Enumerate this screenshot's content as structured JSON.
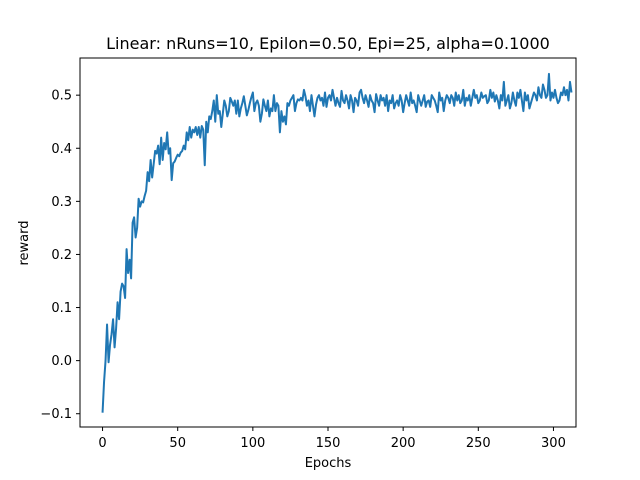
{
  "chart_data": {
    "type": "line",
    "title": "Linear: nRuns=10, Epilon=0.50, Epi=25, alpha=0.1000",
    "xlabel": "Epochs",
    "ylabel": "reward",
    "xlim": [
      -15,
      315
    ],
    "ylim": [
      -0.125,
      0.57
    ],
    "xticks": [
      0,
      50,
      100,
      150,
      200,
      250,
      300
    ],
    "yticks": [
      -0.1,
      0.0,
      0.1,
      0.2,
      0.3,
      0.4,
      0.5
    ],
    "xtick_labels": [
      "0",
      "50",
      "100",
      "150",
      "200",
      "250",
      "300"
    ],
    "ytick_labels": [
      "−0.1",
      "0.0",
      "0.1",
      "0.2",
      "0.3",
      "0.4",
      "0.5"
    ],
    "grid": false,
    "series": [
      {
        "color": "#1f77b4",
        "x_step": 1,
        "x_start": 0,
        "values": [
          -0.098,
          -0.04,
          0.0,
          0.068,
          -0.003,
          0.03,
          0.05,
          0.078,
          0.025,
          0.06,
          0.11,
          0.078,
          0.13,
          0.145,
          0.14,
          0.118,
          0.21,
          0.165,
          0.19,
          0.155,
          0.26,
          0.27,
          0.232,
          0.25,
          0.305,
          0.29,
          0.3,
          0.298,
          0.31,
          0.32,
          0.355,
          0.338,
          0.378,
          0.345,
          0.37,
          0.395,
          0.39,
          0.405,
          0.37,
          0.42,
          0.378,
          0.41,
          0.398,
          0.43,
          0.39,
          0.4,
          0.34,
          0.372,
          0.375,
          0.382,
          0.388,
          0.385,
          0.392,
          0.395,
          0.405,
          0.398,
          0.43,
          0.415,
          0.44,
          0.42,
          0.435,
          0.43,
          0.44,
          0.425,
          0.44,
          0.42,
          0.442,
          0.435,
          0.368,
          0.45,
          0.43,
          0.46,
          0.455,
          0.47,
          0.49,
          0.45,
          0.5,
          0.465,
          0.47,
          0.44,
          0.465,
          0.49,
          0.48,
          0.46,
          0.47,
          0.495,
          0.488,
          0.48,
          0.49,
          0.465,
          0.49,
          0.46,
          0.475,
          0.485,
          0.498,
          0.48,
          0.462,
          0.472,
          0.485,
          0.496,
          0.505,
          0.47,
          0.485,
          0.49,
          0.48,
          0.45,
          0.465,
          0.492,
          0.48,
          0.47,
          0.49,
          0.46,
          0.475,
          0.47,
          0.5,
          0.47,
          0.485,
          0.48,
          0.43,
          0.47,
          0.45,
          0.46,
          0.445,
          0.485,
          0.48,
          0.49,
          0.495,
          0.5,
          0.47,
          0.485,
          0.492,
          0.49,
          0.495,
          0.49,
          0.51,
          0.498,
          0.48,
          0.49,
          0.47,
          0.5,
          0.48,
          0.46,
          0.482,
          0.495,
          0.5,
          0.49,
          0.495,
          0.48,
          0.505,
          0.478,
          0.495,
          0.5,
          0.49,
          0.51,
          0.495,
          0.48,
          0.495,
          0.485,
          0.478,
          0.508,
          0.49,
          0.485,
          0.5,
          0.49,
          0.475,
          0.5,
          0.49,
          0.468,
          0.495,
          0.49,
          0.48,
          0.505,
          0.51,
          0.495,
          0.485,
          0.5,
          0.49,
          0.478,
          0.5,
          0.49,
          0.485,
          0.468,
          0.502,
          0.49,
          0.48,
          0.5,
          0.49,
          0.495,
          0.48,
          0.5,
          0.47,
          0.49,
          0.485,
          0.5,
          0.475,
          0.485,
          0.49,
          0.48,
          0.5,
          0.49,
          0.468,
          0.485,
          0.5,
          0.49,
          0.48,
          0.505,
          0.485,
          0.49,
          0.48,
          0.468,
          0.5,
          0.49,
          0.48,
          0.49,
          0.5,
          0.478,
          0.488,
          0.49,
          0.478,
          0.5,
          0.495,
          0.49,
          0.48,
          0.468,
          0.505,
          0.49,
          0.495,
          0.47,
          0.49,
          0.5,
          0.495,
          0.485,
          0.5,
          0.495,
          0.48,
          0.505,
          0.49,
          0.5,
          0.485,
          0.49,
          0.51,
          0.48,
          0.495,
          0.49,
          0.5,
          0.48,
          0.495,
          0.51,
          0.495,
          0.5,
          0.485,
          0.49,
          0.505,
          0.495,
          0.498,
          0.5,
          0.485,
          0.49,
          0.51,
          0.495,
          0.505,
          0.488,
          0.5,
          0.49,
          0.475,
          0.5,
          0.49,
          0.525,
          0.48,
          0.49,
          0.5,
          0.475,
          0.485,
          0.505,
          0.49,
          0.48,
          0.505,
          0.495,
          0.51,
          0.49,
          0.47,
          0.505,
          0.49,
          0.5,
          0.475,
          0.485,
          0.495,
          0.505,
          0.5,
          0.49,
          0.515,
          0.5,
          0.495,
          0.52,
          0.51,
          0.495,
          0.5,
          0.54,
          0.49,
          0.505,
          0.495,
          0.51,
          0.495,
          0.485,
          0.49,
          0.505,
          0.5,
          0.515,
          0.5,
          0.51,
          0.49,
          0.525,
          0.505
        ]
      }
    ]
  }
}
